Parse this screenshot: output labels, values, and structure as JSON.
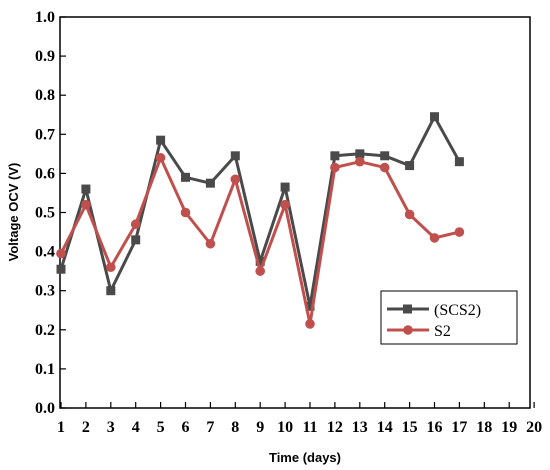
{
  "chart_data": {
    "type": "line",
    "title": "",
    "xlabel": "Time (days)",
    "ylabel": "Voltage OCV (V)",
    "xlim": [
      1,
      20
    ],
    "ylim": [
      0.0,
      1.0
    ],
    "x_ticks": [
      "1",
      "2",
      "3",
      "4",
      "5",
      "6",
      "7",
      "8",
      "9",
      "10",
      "11",
      "12",
      "13",
      "14",
      "15",
      "16",
      "17",
      "18",
      "19",
      "20"
    ],
    "y_ticks": [
      "0.0",
      "0.1",
      "0.2",
      "0.3",
      "0.4",
      "0.5",
      "0.6",
      "0.7",
      "0.8",
      "0.9",
      "1.0"
    ],
    "grid": false,
    "legend_position": "bottom-right",
    "series": [
      {
        "name": "(SCS2)",
        "marker": "square",
        "color": "#4a4a4a",
        "x": [
          1,
          2,
          3,
          4,
          5,
          6,
          7,
          8,
          9,
          10,
          11,
          12,
          13,
          14,
          15,
          16,
          17
        ],
        "y": [
          0.355,
          0.56,
          0.3,
          0.43,
          0.685,
          0.59,
          0.575,
          0.645,
          0.375,
          0.565,
          0.26,
          0.645,
          0.65,
          0.645,
          0.62,
          0.745,
          0.63
        ]
      },
      {
        "name": "S2",
        "marker": "circle",
        "color": "#c0504d",
        "x": [
          1,
          2,
          3,
          4,
          5,
          6,
          7,
          8,
          9,
          10,
          11,
          12,
          13,
          14,
          15,
          16,
          17
        ],
        "y": [
          0.395,
          0.52,
          0.36,
          0.47,
          0.64,
          0.5,
          0.42,
          0.585,
          0.35,
          0.52,
          0.215,
          0.615,
          0.63,
          0.615,
          0.495,
          0.435,
          0.45
        ]
      }
    ]
  }
}
